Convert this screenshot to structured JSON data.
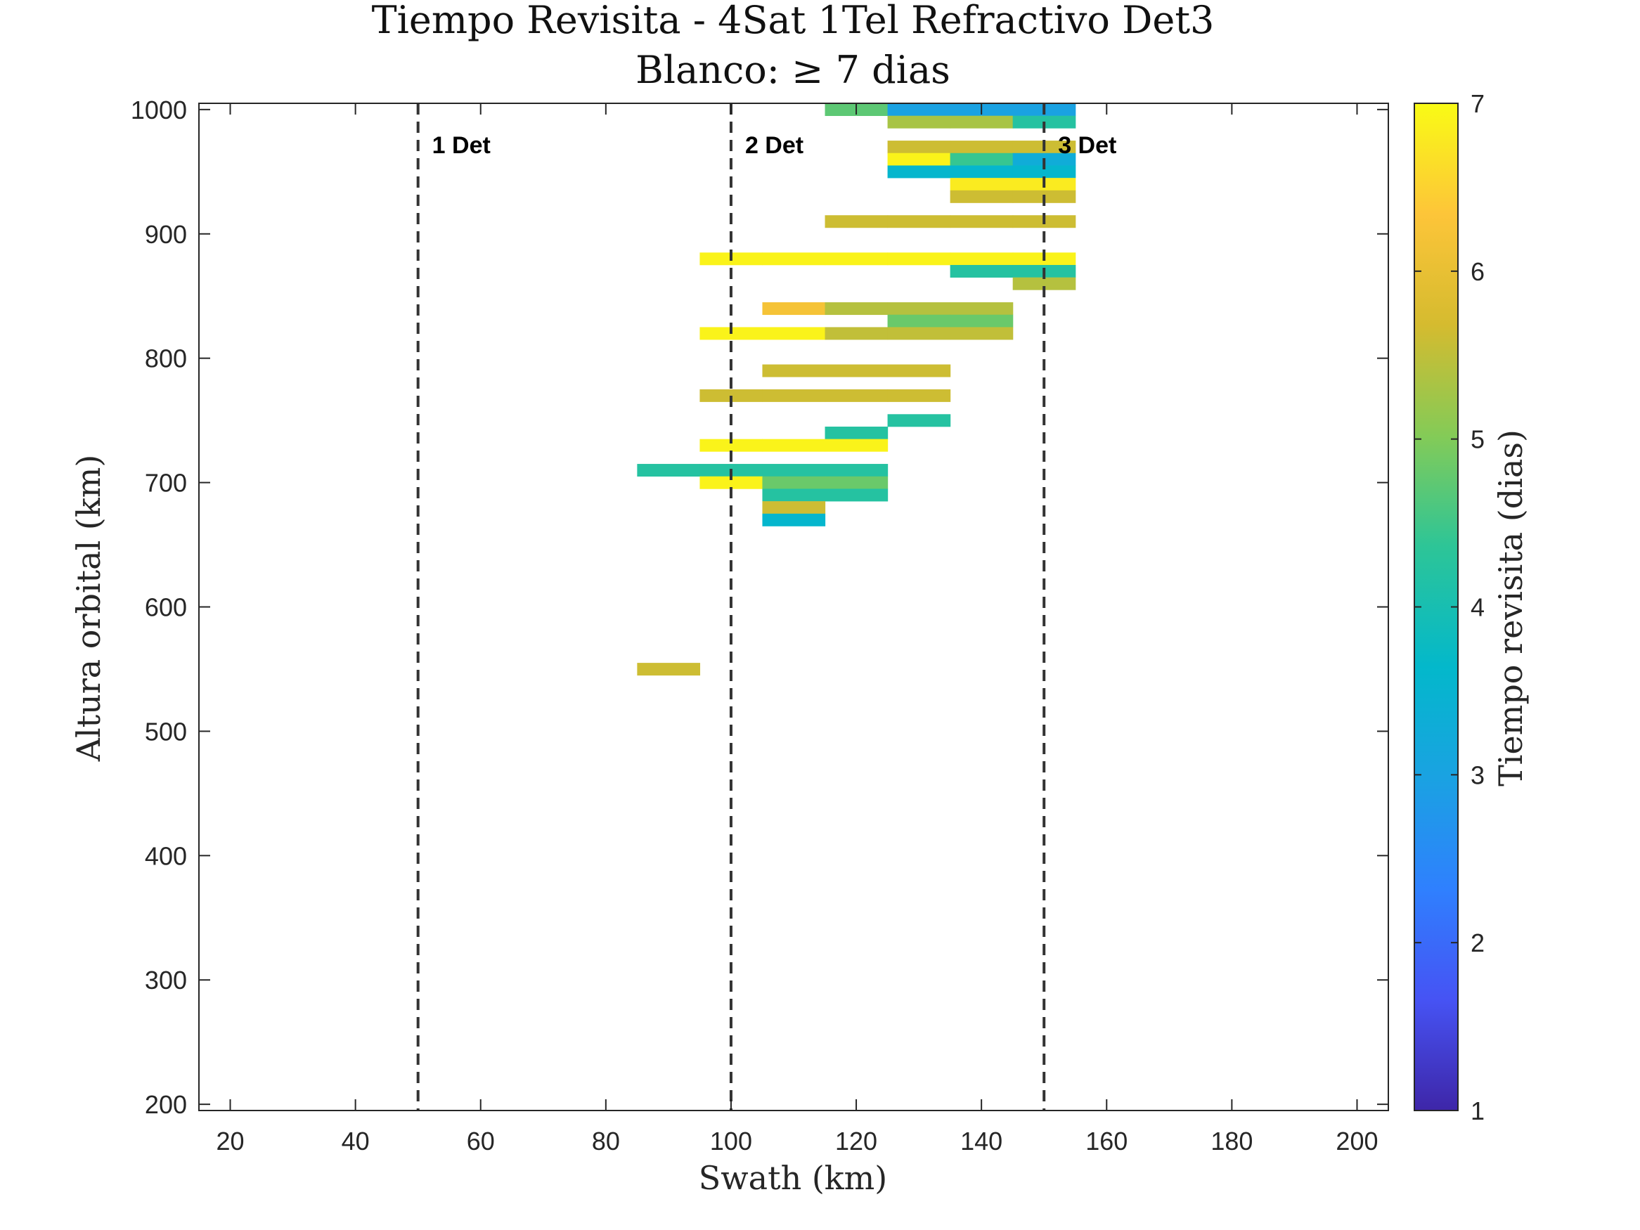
{
  "chart_data": {
    "type": "heatmap",
    "title": "Tiempo Revisita - 4Sat 1Tel Refractivo Det3",
    "subtitle_prefix": "Blanco:",
    "subtitle_symbol": "≥",
    "subtitle_suffix": "7 dias",
    "xlabel": "Swath (km)",
    "ylabel": "Altura orbital (km)",
    "colorbar_label": "Tiempo revisita (dias)",
    "xlim": [
      15,
      205
    ],
    "ylim": [
      195,
      1005
    ],
    "xticks": [
      20,
      40,
      60,
      80,
      100,
      120,
      140,
      160,
      180,
      200
    ],
    "yticks": [
      200,
      300,
      400,
      500,
      600,
      700,
      800,
      900,
      1000
    ],
    "clim": [
      1,
      7
    ],
    "cticks": [
      1,
      2,
      3,
      4,
      5,
      6,
      7
    ],
    "cell_width_km": 10,
    "cell_height_km": 10,
    "grid": false,
    "colormap": [
      "#3e26a8",
      "#4653f4",
      "#2f80fe",
      "#1aa2e2",
      "#03b8cb",
      "#2dc597",
      "#84cb57",
      "#d5bb2f",
      "#fdc539",
      "#f9fb15"
    ],
    "reference_lines": [
      {
        "x": 50,
        "label": "1 Det"
      },
      {
        "x": 100,
        "label": "2 Det"
      },
      {
        "x": 150,
        "label": "3 Det"
      }
    ],
    "cells": [
      {
        "y": 1000,
        "x": [
          120,
          130,
          140,
          150
        ],
        "values": [
          4.7,
          3.0,
          3.0,
          3.0
        ]
      },
      {
        "y": 990,
        "x": [
          130,
          140,
          150
        ],
        "values": [
          5.3,
          5.3,
          4.2
        ]
      },
      {
        "y": 970,
        "x": [
          130,
          140,
          150
        ],
        "values": [
          5.6,
          5.6,
          5.6
        ]
      },
      {
        "y": 960,
        "x": [
          130,
          140,
          150
        ],
        "values": [
          6.9,
          4.4,
          3.3
        ]
      },
      {
        "y": 950,
        "x": [
          130,
          140,
          150
        ],
        "values": [
          3.6,
          3.6,
          3.6
        ]
      },
      {
        "y": 940,
        "x": [
          140,
          150
        ],
        "values": [
          6.8,
          6.8
        ]
      },
      {
        "y": 930,
        "x": [
          140,
          150
        ],
        "values": [
          5.6,
          5.6
        ]
      },
      {
        "y": 910,
        "x": [
          120,
          130,
          140,
          150
        ],
        "values": [
          5.6,
          5.6,
          5.6,
          5.6
        ]
      },
      {
        "y": 880,
        "x": [
          100,
          110,
          120,
          130,
          140,
          150
        ],
        "values": [
          6.9,
          6.9,
          6.9,
          6.9,
          6.9,
          6.9
        ]
      },
      {
        "y": 870,
        "x": [
          140,
          150
        ],
        "values": [
          4.2,
          4.2
        ]
      },
      {
        "y": 860,
        "x": [
          150
        ],
        "values": [
          5.4
        ]
      },
      {
        "y": 840,
        "x": [
          110,
          120,
          130,
          140
        ],
        "values": [
          6.2,
          5.4,
          5.4,
          5.4
        ]
      },
      {
        "y": 830,
        "x": [
          130,
          140
        ],
        "values": [
          4.8,
          4.8
        ]
      },
      {
        "y": 820,
        "x": [
          100,
          110,
          120,
          130,
          140
        ],
        "values": [
          6.9,
          6.9,
          5.5,
          5.5,
          5.5
        ]
      },
      {
        "y": 790,
        "x": [
          110,
          120,
          130
        ],
        "values": [
          5.6,
          5.6,
          5.6
        ]
      },
      {
        "y": 770,
        "x": [
          100,
          110,
          120,
          130
        ],
        "values": [
          5.6,
          5.6,
          5.6,
          5.6
        ]
      },
      {
        "y": 750,
        "x": [
          130
        ],
        "values": [
          4.2
        ]
      },
      {
        "y": 740,
        "x": [
          120
        ],
        "values": [
          4.2
        ]
      },
      {
        "y": 730,
        "x": [
          100,
          110,
          120
        ],
        "values": [
          6.9,
          6.9,
          6.9
        ]
      },
      {
        "y": 710,
        "x": [
          90,
          100,
          110,
          120
        ],
        "values": [
          4.2,
          4.2,
          4.2,
          4.2
        ]
      },
      {
        "y": 700,
        "x": [
          100,
          110,
          120
        ],
        "values": [
          6.9,
          4.8,
          4.8
        ]
      },
      {
        "y": 690,
        "x": [
          110,
          120
        ],
        "values": [
          4.2,
          4.2
        ]
      },
      {
        "y": 680,
        "x": [
          110
        ],
        "values": [
          5.6
        ]
      },
      {
        "y": 670,
        "x": [
          110
        ],
        "values": [
          3.6
        ]
      },
      {
        "y": 550,
        "x": [
          90
        ],
        "values": [
          5.6
        ]
      }
    ]
  }
}
